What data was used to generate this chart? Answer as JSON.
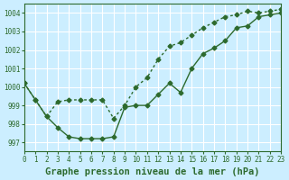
{
  "title": "Graphe pression niveau de la mer (hPa)",
  "bg_color": "#cceeff",
  "grid_color": "#ffffff",
  "line_color": "#2d6a2d",
  "xlim": [
    0,
    23
  ],
  "ylim": [
    996.5,
    1004.5
  ],
  "yticks": [
    997,
    998,
    999,
    1000,
    1001,
    1002,
    1003,
    1004
  ],
  "xticks": [
    0,
    1,
    2,
    3,
    4,
    5,
    6,
    7,
    8,
    9,
    10,
    11,
    12,
    13,
    14,
    15,
    16,
    17,
    18,
    19,
    20,
    21,
    22,
    23
  ],
  "series1": [
    1000.2,
    999.3,
    998.4,
    997.8,
    997.3,
    997.2,
    997.2,
    997.2,
    997.3,
    998.9,
    999.0,
    999.0,
    999.6,
    1000.2,
    999.7,
    1001.0,
    1001.8,
    1002.1,
    1002.5,
    1003.2,
    1003.3,
    1003.8,
    1003.9,
    1004.0
  ],
  "series2": [
    1000.2,
    999.3,
    998.4,
    999.2,
    999.3,
    999.3,
    999.3,
    999.3,
    998.3,
    999.0,
    1000.0,
    1000.5,
    1001.5,
    1002.2,
    1002.4,
    1002.8,
    1003.2,
    1003.5,
    1003.8,
    1003.9,
    1004.1,
    1004.0,
    1004.1,
    1004.2
  ],
  "title_fontsize": 7.5,
  "tick_fontsize": 5.5
}
